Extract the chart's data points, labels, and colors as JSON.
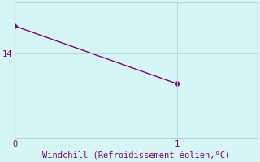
{
  "x": [
    0,
    1
  ],
  "y": [
    14.8,
    13.1
  ],
  "line_color": "#800080",
  "line_style": "-",
  "marker": "D",
  "marker_size": 3,
  "background_color": "#d6f5f5",
  "grid_color": "#b0d8d8",
  "xlabel": "Windchill (Refroidissement éolien,°C)",
  "xlabel_color": "#800080",
  "xlabel_fontsize": 7.5,
  "tick_color": "#800080",
  "tick_fontsize": 7.5,
  "xlim": [
    0,
    1.5
  ],
  "ylim": [
    11.5,
    15.5
  ],
  "yticks": [
    14
  ],
  "xticks": [
    0,
    1
  ],
  "figsize": [
    3.2,
    2.0
  ],
  "dpi": 100
}
